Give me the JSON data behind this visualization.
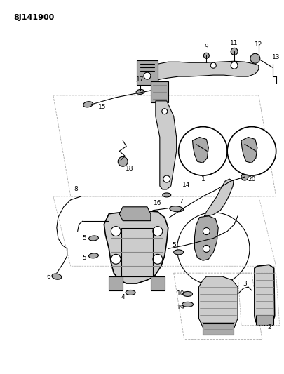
{
  "title_code": "8J141900",
  "bg": "#ffffff",
  "lc": "#000000",
  "gray1": "#cccccc",
  "gray2": "#aaaaaa",
  "gray3": "#888888",
  "fig_width": 4.05,
  "fig_height": 5.33,
  "dpi": 100
}
